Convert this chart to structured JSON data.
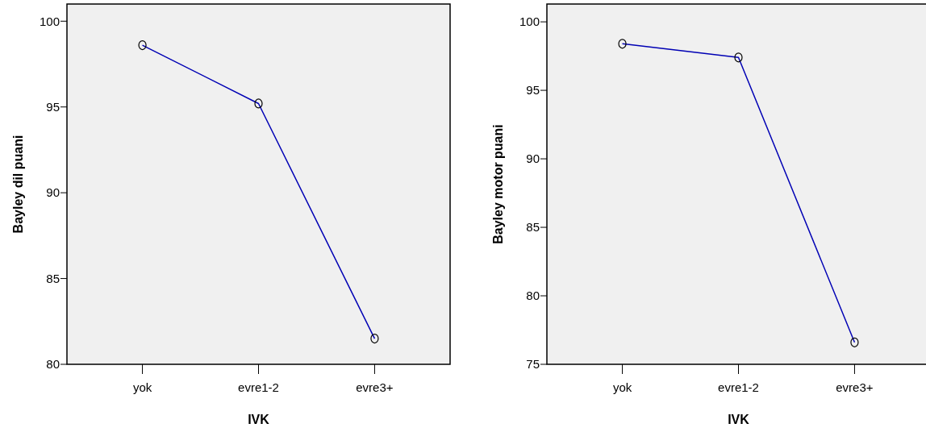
{
  "chart_data": [
    {
      "type": "line",
      "xlabel": "IVK",
      "ylabel": "Bayley dil puani",
      "categories": [
        "yok",
        "evre1-2",
        "evre3+"
      ],
      "series": [
        {
          "color": "#0000b4",
          "values": [
            98.6,
            95.2,
            81.5
          ]
        }
      ],
      "ylim": [
        80,
        101
      ],
      "yticks": [
        80,
        85,
        90,
        95,
        100
      ],
      "marker": "circle"
    },
    {
      "type": "line",
      "xlabel": "IVK",
      "ylabel": "Bayley motor puani",
      "categories": [
        "yok",
        "evre1-2",
        "evre3+"
      ],
      "series": [
        {
          "color": "#0000b4",
          "values": [
            98.4,
            97.4,
            76.6
          ]
        }
      ],
      "ylim": [
        75,
        101.3
      ],
      "yticks": [
        75,
        80,
        85,
        90,
        95,
        100
      ],
      "marker": "circle"
    }
  ]
}
